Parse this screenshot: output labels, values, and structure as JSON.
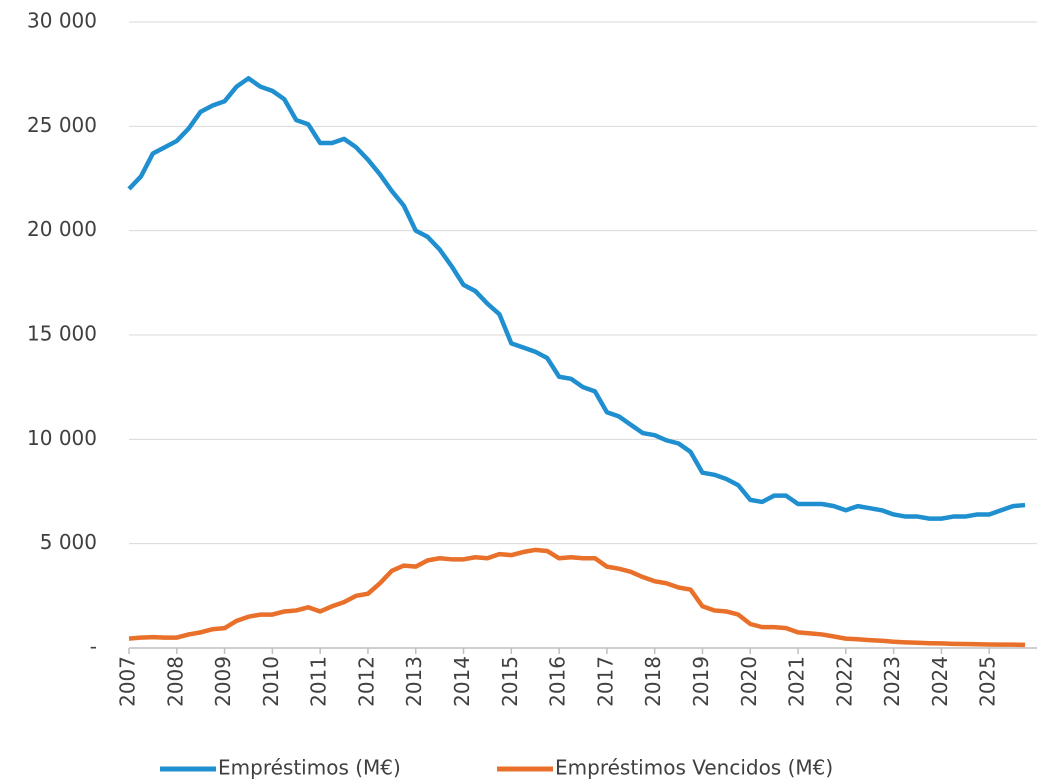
{
  "chart_data": {
    "type": "line",
    "x": [
      2007,
      2007.25,
      2007.5,
      2007.75,
      2008,
      2008.25,
      2008.5,
      2008.75,
      2009,
      2009.25,
      2009.5,
      2009.75,
      2010,
      2010.25,
      2010.5,
      2010.75,
      2011,
      2011.25,
      2011.5,
      2011.75,
      2012,
      2012.25,
      2012.5,
      2012.75,
      2013,
      2013.25,
      2013.5,
      2013.75,
      2014,
      2014.25,
      2014.5,
      2014.75,
      2015,
      2015.25,
      2015.5,
      2015.75,
      2016,
      2016.25,
      2016.5,
      2016.75,
      2017,
      2017.25,
      2017.5,
      2017.75,
      2018,
      2018.25,
      2018.5,
      2018.75,
      2019,
      2019.25,
      2019.5,
      2019.75,
      2020,
      2020.25,
      2020.5,
      2020.75,
      2021,
      2021.25,
      2021.5,
      2021.75,
      2022,
      2022.25,
      2022.5,
      2022.75,
      2023,
      2023.25,
      2023.5,
      2023.75,
      2024,
      2024.25,
      2024.5,
      2024.75,
      2025,
      2025.25,
      2025.5,
      2025.75
    ],
    "series": [
      {
        "name": "Empréstimos (M€)",
        "color": "#1f8fcf",
        "values": [
          22000,
          22600,
          23700,
          24000,
          24300,
          24900,
          25700,
          26000,
          26200,
          26900,
          27300,
          26900,
          26700,
          26300,
          25300,
          25100,
          24200,
          24200,
          24400,
          24000,
          23400,
          22700,
          21900,
          21200,
          20000,
          19700,
          19100,
          18300,
          17400,
          17100,
          16500,
          16000,
          14600,
          14400,
          14200,
          13900,
          13000,
          12900,
          12500,
          12300,
          11300,
          11100,
          10700,
          10300,
          10200,
          9950,
          9800,
          9400,
          8400,
          8300,
          8100,
          7800,
          7100,
          7000,
          7300,
          7300,
          6900,
          6900,
          6900,
          6800,
          6600,
          6800,
          6700,
          6600,
          6400,
          6300,
          6300,
          6200,
          6200,
          6300,
          6300,
          6400,
          6400,
          6600,
          6800,
          6850
        ]
      },
      {
        "name": "Empréstimos Vencidos (M€)",
        "color": "#e8702a",
        "values": [
          450,
          500,
          520,
          500,
          500,
          650,
          750,
          900,
          950,
          1300,
          1500,
          1600,
          1600,
          1750,
          1800,
          1950,
          1750,
          2000,
          2200,
          2500,
          2600,
          3100,
          3700,
          3950,
          3900,
          4200,
          4300,
          4250,
          4250,
          4350,
          4300,
          4500,
          4450,
          4600,
          4700,
          4650,
          4300,
          4350,
          4300,
          4300,
          3900,
          3800,
          3650,
          3400,
          3200,
          3100,
          2900,
          2800,
          2000,
          1800,
          1750,
          1600,
          1150,
          1000,
          1000,
          950,
          750,
          700,
          650,
          550,
          450,
          420,
          380,
          350,
          300,
          270,
          250,
          230,
          220,
          200,
          190,
          180,
          170,
          160,
          160,
          150
        ]
      }
    ],
    "xlim": [
      2007,
      2026
    ],
    "xticks": [
      2007,
      2008,
      2009,
      2010,
      2011,
      2012,
      2013,
      2014,
      2015,
      2016,
      2017,
      2018,
      2019,
      2020,
      2021,
      2022,
      2023,
      2024,
      2025
    ],
    "ylim": [
      0,
      30000
    ],
    "yticks": [
      {
        "value": 0,
        "label": "-"
      },
      {
        "value": 5000,
        "label": "5 000"
      },
      {
        "value": 10000,
        "label": "10 000"
      },
      {
        "value": 15000,
        "label": "15 000"
      },
      {
        "value": 20000,
        "label": "20 000"
      },
      {
        "value": 25000,
        "label": "25 000"
      },
      {
        "value": 30000,
        "label": "30 000"
      }
    ],
    "grid": true,
    "legend": "bottom"
  }
}
